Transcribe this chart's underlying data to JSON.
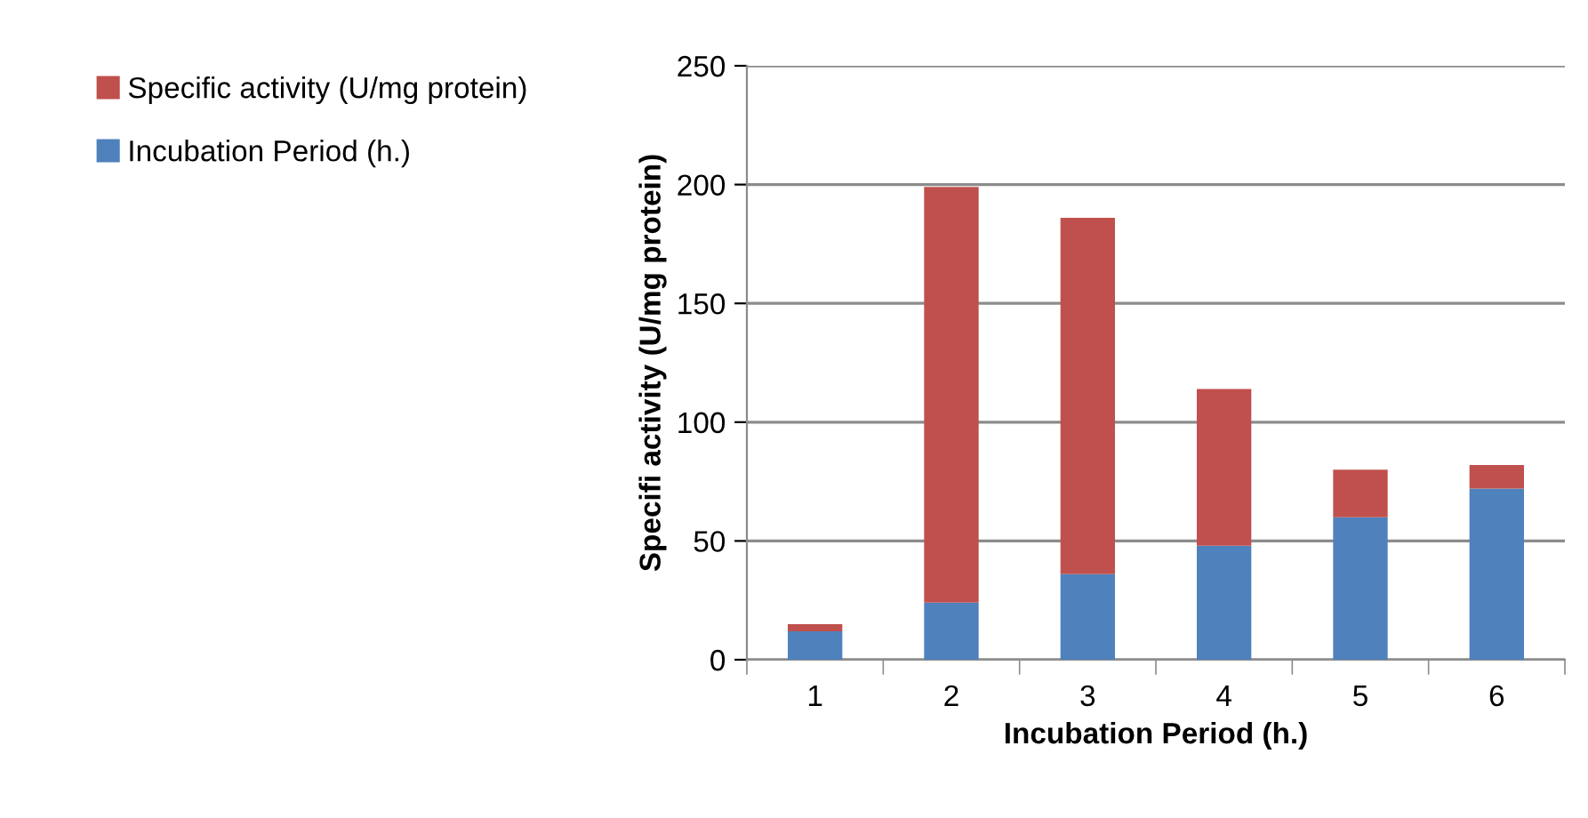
{
  "chart_data": {
    "type": "bar",
    "stacked": true,
    "categories": [
      "1",
      "2",
      "3",
      "4",
      "5",
      "6"
    ],
    "series": [
      {
        "name": "Incubation Period (h.)",
        "color": "#4f81bd",
        "values": [
          12,
          24,
          36,
          48,
          60,
          72
        ]
      },
      {
        "name": "Specific activity (U/mg protein)",
        "color": "#c0504d",
        "values": [
          3,
          175,
          150,
          66,
          20,
          10
        ]
      }
    ],
    "xlabel": "Incubation Period (h.)",
    "ylabel": "Specifi activity (U/mg protein)",
    "ylim": [
      0,
      250
    ],
    "yticks": [
      0,
      50,
      100,
      150,
      200,
      250
    ],
    "grid": "y",
    "legend": "top left"
  }
}
